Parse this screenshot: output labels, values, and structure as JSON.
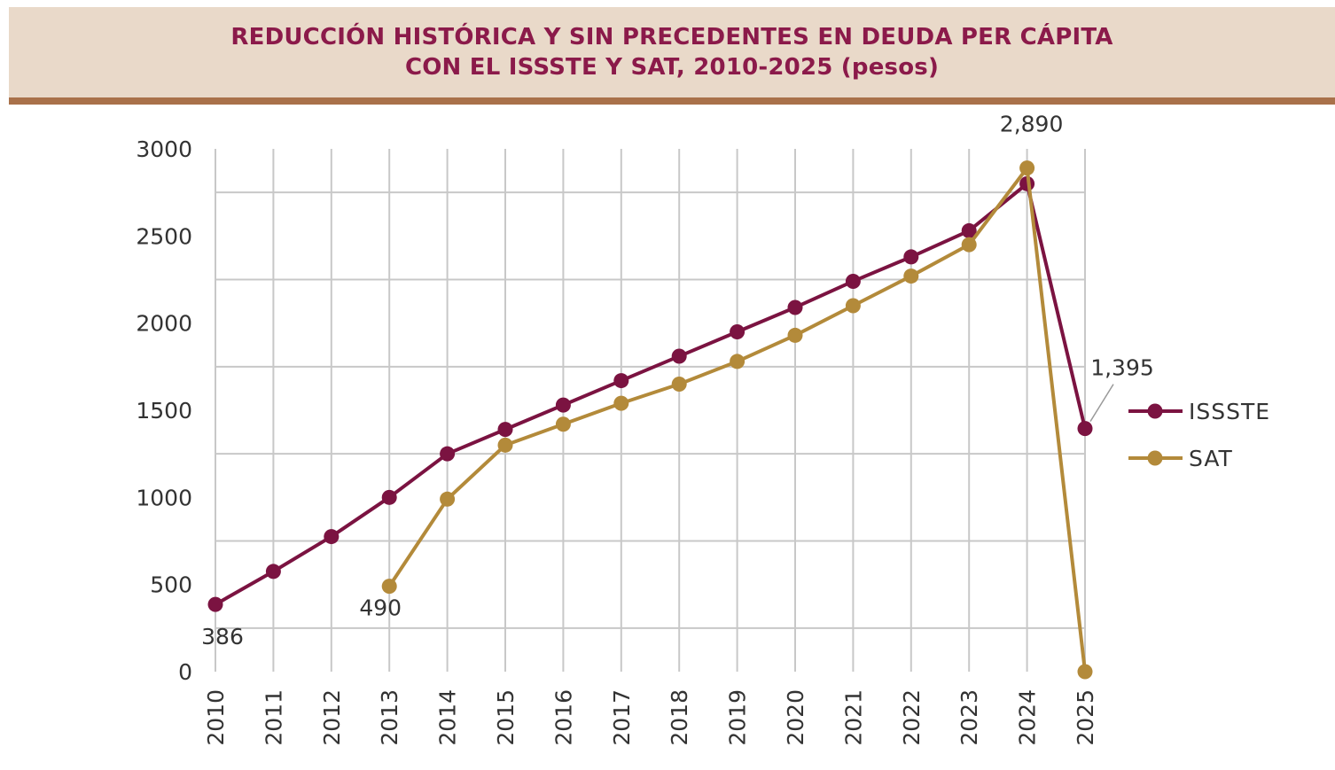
{
  "chart_data": {
    "type": "line",
    "title_lines": [
      "REDUCCIÓN HISTÓRICA Y SIN PRECEDENTES EN DEUDA PER CÁPITA",
      "CON EL ISSSTE Y SAT, 2010-2025 (pesos)"
    ],
    "xlabel": "",
    "ylabel": "",
    "categories": [
      "2010",
      "2011",
      "2012",
      "2013",
      "2014",
      "2015",
      "2016",
      "2017",
      "2018",
      "2019",
      "2020",
      "2021",
      "2022",
      "2023",
      "2024",
      "2025"
    ],
    "ylim": [
      0,
      3000
    ],
    "yticks": [
      0,
      500,
      1000,
      1500,
      2000,
      2500,
      3000
    ],
    "grid": true,
    "legend_position": "right",
    "series": [
      {
        "name": "ISSSTE",
        "color": "#7b1341",
        "values": [
          386,
          575,
          775,
          1000,
          1250,
          1390,
          1530,
          1670,
          1810,
          1950,
          2090,
          2240,
          2380,
          2530,
          2800,
          1395
        ]
      },
      {
        "name": "SAT",
        "color": "#b38a3a",
        "values": [
          null,
          null,
          null,
          490,
          990,
          1300,
          1420,
          1540,
          1650,
          1780,
          1930,
          2100,
          2270,
          2450,
          2890,
          0
        ]
      }
    ],
    "annotations": [
      {
        "series": 0,
        "index": 0,
        "text": "386"
      },
      {
        "series": 1,
        "index": 3,
        "text": "490"
      },
      {
        "series": 1,
        "index": 14,
        "text": "2,890"
      },
      {
        "series": 0,
        "index": 15,
        "text": "1,395"
      }
    ]
  }
}
